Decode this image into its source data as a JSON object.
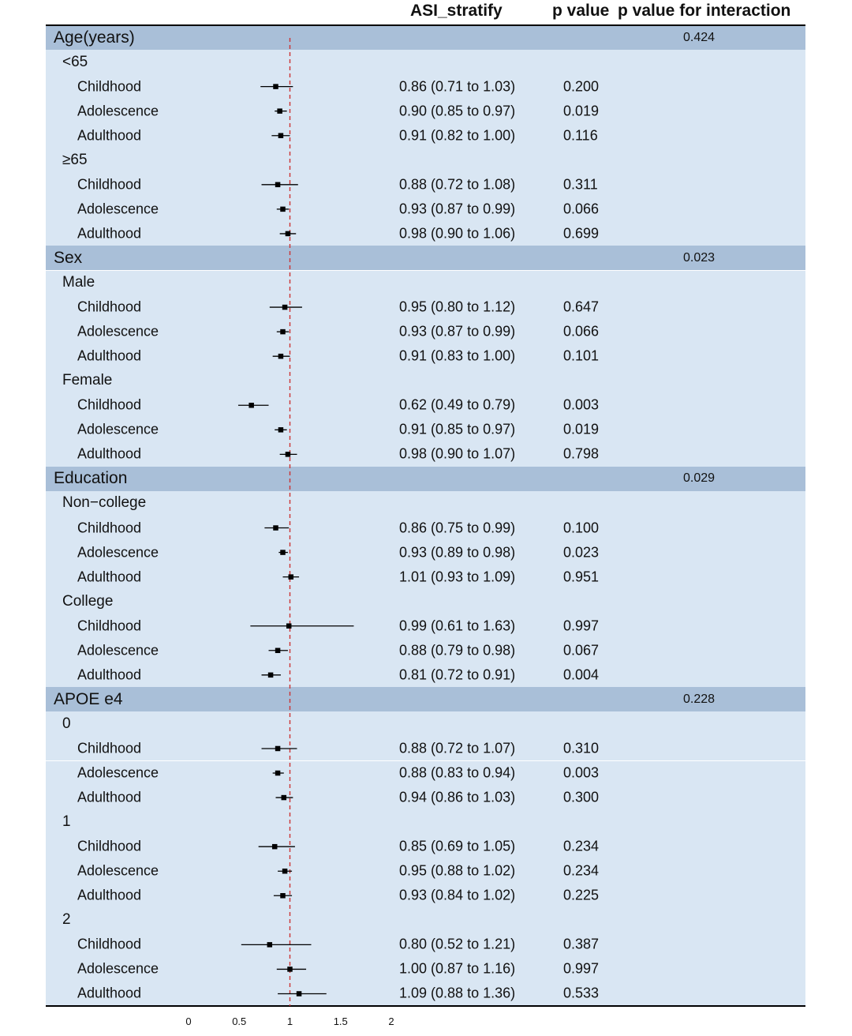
{
  "header": {
    "estimate": "ASI_stratify",
    "p_value": "p value",
    "p_interaction": "p value for interaction"
  },
  "colors": {
    "group_band": "#a9bfd8",
    "row_band": "#d9e6f3",
    "reference_line": "#cc3333",
    "marker": "#000000"
  },
  "chart_data": {
    "type": "forest",
    "xlim": [
      0,
      2
    ],
    "x_ticks": [
      "0",
      "0.5",
      "1",
      "1.5",
      "2"
    ],
    "x_tick_values": [
      0,
      0.5,
      1,
      1.5,
      2
    ],
    "reference_value": 1,
    "rows": [
      {
        "kind": "group",
        "label": "Age(years)",
        "p_interaction": "0.424"
      },
      {
        "kind": "sub",
        "label": "<65"
      },
      {
        "kind": "item",
        "label": "Childhood",
        "est": 0.86,
        "lo": 0.71,
        "hi": 1.03,
        "text": "0.86 (0.71 to 1.03)",
        "p": "0.200"
      },
      {
        "kind": "item",
        "label": "Adolescence",
        "est": 0.9,
        "lo": 0.85,
        "hi": 0.97,
        "text": "0.90 (0.85 to 0.97)",
        "p": "0.019"
      },
      {
        "kind": "item",
        "label": "Adulthood",
        "est": 0.91,
        "lo": 0.82,
        "hi": 1.0,
        "text": "0.91 (0.82 to 1.00)",
        "p": "0.116"
      },
      {
        "kind": "sub",
        "label": "≥65"
      },
      {
        "kind": "item",
        "label": "Childhood",
        "est": 0.88,
        "lo": 0.72,
        "hi": 1.08,
        "text": "0.88 (0.72 to 1.08)",
        "p": "0.311"
      },
      {
        "kind": "item",
        "label": "Adolescence",
        "est": 0.93,
        "lo": 0.87,
        "hi": 0.99,
        "text": "0.93 (0.87 to 0.99)",
        "p": "0.066"
      },
      {
        "kind": "item",
        "label": "Adulthood",
        "est": 0.98,
        "lo": 0.9,
        "hi": 1.06,
        "text": "0.98 (0.90 to 1.06)",
        "p": "0.699"
      },
      {
        "kind": "group",
        "label": "Sex",
        "p_interaction": "0.023"
      },
      {
        "kind": "sub",
        "label": "Male"
      },
      {
        "kind": "item",
        "label": "Childhood",
        "est": 0.95,
        "lo": 0.8,
        "hi": 1.12,
        "text": "0.95 (0.80 to 1.12)",
        "p": "0.647"
      },
      {
        "kind": "item",
        "label": "Adolescence",
        "est": 0.93,
        "lo": 0.87,
        "hi": 0.99,
        "text": "0.93 (0.87 to 0.99)",
        "p": "0.066"
      },
      {
        "kind": "item",
        "label": "Adulthood",
        "est": 0.91,
        "lo": 0.83,
        "hi": 1.0,
        "text": "0.91 (0.83 to 1.00)",
        "p": "0.101"
      },
      {
        "kind": "sub",
        "label": "Female"
      },
      {
        "kind": "item",
        "label": "Childhood",
        "est": 0.62,
        "lo": 0.49,
        "hi": 0.79,
        "text": "0.62 (0.49 to 0.79)",
        "p": "0.003"
      },
      {
        "kind": "item",
        "label": "Adolescence",
        "est": 0.91,
        "lo": 0.85,
        "hi": 0.97,
        "text": "0.91 (0.85 to 0.97)",
        "p": "0.019"
      },
      {
        "kind": "item",
        "label": "Adulthood",
        "est": 0.98,
        "lo": 0.9,
        "hi": 1.07,
        "text": "0.98 (0.90 to 1.07)",
        "p": "0.798"
      },
      {
        "kind": "group",
        "label": "Education",
        "p_interaction": "0.029"
      },
      {
        "kind": "sub",
        "label": "Non−college"
      },
      {
        "kind": "item",
        "label": "Childhood",
        "est": 0.86,
        "lo": 0.75,
        "hi": 0.99,
        "text": "0.86 (0.75 to 0.99)",
        "p": "0.100"
      },
      {
        "kind": "item",
        "label": "Adolescence",
        "est": 0.93,
        "lo": 0.89,
        "hi": 0.98,
        "text": "0.93 (0.89 to 0.98)",
        "p": "0.023"
      },
      {
        "kind": "item",
        "label": "Adulthood",
        "est": 1.01,
        "lo": 0.93,
        "hi": 1.09,
        "text": "1.01 (0.93 to 1.09)",
        "p": "0.951"
      },
      {
        "kind": "sub",
        "label": "College"
      },
      {
        "kind": "item",
        "label": "Childhood",
        "est": 0.99,
        "lo": 0.61,
        "hi": 1.63,
        "text": "0.99 (0.61 to 1.63)",
        "p": "0.997"
      },
      {
        "kind": "item",
        "label": "Adolescence",
        "est": 0.88,
        "lo": 0.79,
        "hi": 0.98,
        "text": "0.88 (0.79 to 0.98)",
        "p": "0.067"
      },
      {
        "kind": "item",
        "label": "Adulthood",
        "est": 0.81,
        "lo": 0.72,
        "hi": 0.91,
        "text": "0.81 (0.72 to 0.91)",
        "p": "0.004"
      },
      {
        "kind": "group",
        "label": "APOE e4",
        "p_interaction": "0.228"
      },
      {
        "kind": "sub",
        "label": "0"
      },
      {
        "kind": "item",
        "label": "Childhood",
        "est": 0.88,
        "lo": 0.72,
        "hi": 1.07,
        "text": "0.88 (0.72 to 1.07)",
        "p": "0.310"
      },
      {
        "kind": "item",
        "label": "Adolescence",
        "est": 0.88,
        "lo": 0.83,
        "hi": 0.94,
        "text": "0.88 (0.83 to 0.94)",
        "p": "0.003"
      },
      {
        "kind": "item",
        "label": "Adulthood",
        "est": 0.94,
        "lo": 0.86,
        "hi": 1.03,
        "text": "0.94 (0.86 to 1.03)",
        "p": "0.300"
      },
      {
        "kind": "sub",
        "label": "1"
      },
      {
        "kind": "item",
        "label": "Childhood",
        "est": 0.85,
        "lo": 0.69,
        "hi": 1.05,
        "text": "0.85 (0.69 to 1.05)",
        "p": "0.234"
      },
      {
        "kind": "item",
        "label": "Adolescence",
        "est": 0.95,
        "lo": 0.88,
        "hi": 1.02,
        "text": "0.95 (0.88 to 1.02)",
        "p": "0.234"
      },
      {
        "kind": "item",
        "label": "Adulthood",
        "est": 0.93,
        "lo": 0.84,
        "hi": 1.02,
        "text": "0.93 (0.84 to 1.02)",
        "p": "0.225"
      },
      {
        "kind": "sub",
        "label": "2"
      },
      {
        "kind": "item",
        "label": "Childhood",
        "est": 0.8,
        "lo": 0.52,
        "hi": 1.21,
        "text": "0.80 (0.52 to 1.21)",
        "p": "0.387"
      },
      {
        "kind": "item",
        "label": "Adolescence",
        "est": 1.0,
        "lo": 0.87,
        "hi": 1.16,
        "text": "1.00 (0.87 to 1.16)",
        "p": "0.997"
      },
      {
        "kind": "item",
        "label": "Adulthood",
        "est": 1.09,
        "lo": 0.88,
        "hi": 1.36,
        "text": "1.09 (0.88 to 1.36)",
        "p": "0.533"
      }
    ]
  }
}
